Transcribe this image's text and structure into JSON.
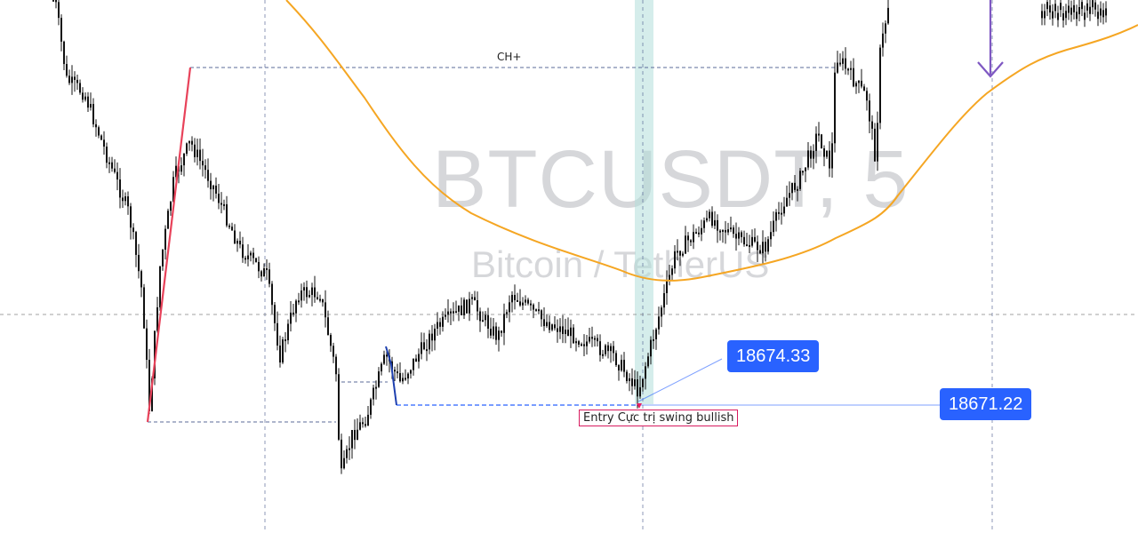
{
  "watermark": {
    "symbol": "BTCUSDT, 5",
    "description": "Bitcoin / TetherUS"
  },
  "annotations": {
    "ch_plus": "CH+",
    "entry_label": "Entry Cực trị swing bullish",
    "price_label_1": "18674.33",
    "price_label_2": "18671.22"
  },
  "colors": {
    "candle": "#111111",
    "ma_line": "#f5a623",
    "swing_up_line": "#e8425a",
    "swing_small_line": "#1e40af",
    "price_label_bg": "#2962ff",
    "highlight_band": "#b2dfdb",
    "arrow": "#7e57c2",
    "dashed_line": "#5b6b99"
  },
  "chart_data": {
    "type": "candlestick",
    "symbol": "BTCUSDT",
    "timeframe": "5",
    "y_axis": {
      "unit": "USDT",
      "scale": "linear",
      "labels_visible": false
    },
    "x_axis": {
      "labels_visible": false
    },
    "grid": "off",
    "reference_prices": [
      18674.33,
      18671.22
    ],
    "series": [
      {
        "kind": "candlesticks",
        "style": "black OHLC bars"
      },
      {
        "kind": "moving-average",
        "style": "orange line"
      }
    ]
  }
}
